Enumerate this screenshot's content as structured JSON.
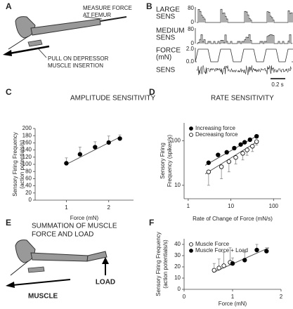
{
  "figure": {
    "panel_letters": [
      "A",
      "B",
      "C",
      "D",
      "E",
      "F"
    ],
    "a_labels": [
      "MEASURE FORCE",
      "AT FEMUR",
      "PULL ON DEPRESSOR",
      "MUSCLE INSERTION"
    ],
    "b": {
      "rows": [
        {
          "label": [
            "LARGE",
            "SENS"
          ],
          "ticks": [
            "80",
            "0"
          ]
        },
        {
          "label": [
            "MEDIUM",
            "SENS"
          ],
          "ticks": [
            "80",
            "0"
          ]
        },
        {
          "label": [
            "FORCE",
            "(mN)"
          ],
          "ticks": [
            "2.0",
            "0.0"
          ]
        },
        {
          "label": [
            "SENS"
          ],
          "ticks": []
        }
      ],
      "scale": "0.2 s"
    },
    "e_title": [
      "SUMMATION OF MUSCLE",
      "FORCE AND LOAD"
    ],
    "e_labels": [
      "MUSCLE",
      "LOAD"
    ]
  },
  "chart_data": [
    {
      "type": "scatter",
      "title": "AMPLITUDE SENSITIVITY",
      "ylabel": [
        "Sensory Firing Frequency",
        "(action potentials/s)"
      ],
      "xlabel": "Force (mN)",
      "xlog": true,
      "xlim": [
        0.6,
        3
      ],
      "xticks": [
        1,
        2
      ],
      "ylim": [
        0,
        200
      ],
      "yticks": [
        0,
        20,
        40,
        60,
        80,
        100,
        120,
        140,
        160,
        180,
        200
      ],
      "series": [
        {
          "color": "#000000",
          "marker": "filled",
          "x": [
            1,
            1.25,
            1.6,
            2,
            2.4
          ],
          "values": [
            103,
            128,
            148,
            161,
            172
          ],
          "errors": [
            15,
            20,
            15,
            18,
            10
          ],
          "error_side": "up"
        }
      ],
      "fit": {
        "x": [
          1,
          2.4
        ],
        "values": [
          100,
          176
        ]
      }
    },
    {
      "type": "scatter",
      "title": "RATE SENSITIVITY",
      "ylabel": [
        "Sensory Firing",
        "Frequency (spikes/s)"
      ],
      "xlabel": "Rate of Change of Force (mN/s)",
      "xlog": true,
      "ylog": true,
      "xlim": [
        0.8,
        150
      ],
      "xticks": [
        1,
        10,
        100
      ],
      "ylim": [
        5,
        250
      ],
      "yticks": [
        10,
        100
      ],
      "legend": "upper left",
      "series": [
        {
          "name": "Increasing force",
          "color": "#000000",
          "marker": "filled",
          "x": [
            3,
            5,
            8,
            12,
            17,
            21,
            28,
            40
          ],
          "values": [
            32,
            48,
            55,
            68,
            82,
            92,
            105,
            125
          ],
          "fit": {
            "x": [
              2.5,
              45
            ],
            "values": [
              28,
              135
            ]
          }
        },
        {
          "name": "Decreasing force",
          "color": "#000000",
          "marker": "open",
          "x": [
            3,
            6,
            9,
            13,
            19,
            24,
            32,
            40
          ],
          "values": [
            20,
            26,
            34,
            42,
            52,
            62,
            75,
            95
          ],
          "errors": [
            10,
            12,
            14,
            12,
            15,
            15,
            18,
            15
          ],
          "error_side": "down",
          "fit": {
            "x": [
              2.5,
              45
            ],
            "values": [
              18,
              100
            ]
          }
        }
      ]
    },
    {
      "type": "scatter",
      "ylabel": [
        "Sensory Firing Frequency",
        "(action potentials/s)"
      ],
      "xlabel": "Force (mN)",
      "xlim": [
        0,
        2
      ],
      "xticks": [
        0,
        1,
        2
      ],
      "ylim": [
        0,
        45
      ],
      "yticks": [
        0,
        10,
        20,
        30,
        40
      ],
      "legend": "upper left",
      "series": [
        {
          "name": "Muscle Force",
          "color": "#000000",
          "marker": "open",
          "x": [
            0.62,
            0.72,
            0.82,
            0.95
          ],
          "values": [
            17,
            19,
            21,
            24
          ],
          "errors": [
            6,
            8,
            12,
            13
          ],
          "error_side": "up"
        },
        {
          "name": "Muscle Force + Load",
          "color": "#000000",
          "marker": "filled",
          "x": [
            1.0,
            1.25,
            1.5,
            1.7
          ],
          "values": [
            23,
            26,
            35,
            34
          ],
          "errors": [
            5,
            7,
            5,
            3
          ],
          "error_side": "up"
        }
      ],
      "fit": {
        "x": [
          0.6,
          1.75
        ],
        "values": [
          15,
          37
        ]
      }
    }
  ]
}
